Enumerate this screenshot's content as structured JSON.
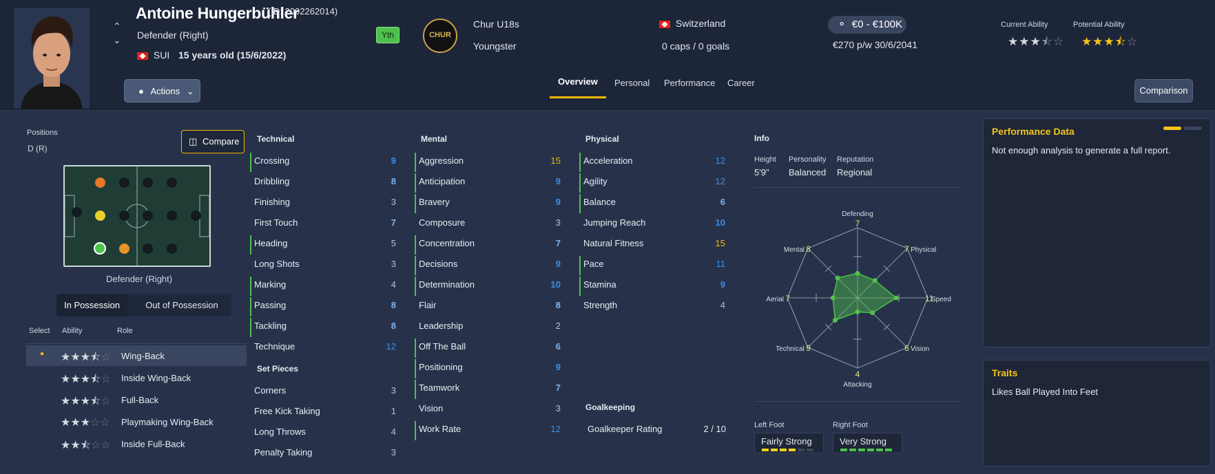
{
  "player": {
    "name": "Antoine Hungerbühler",
    "id": "(ID: 2002262014)",
    "position": "Defender (Right)",
    "nation": "SUI",
    "age": "15 years old (15/6/2022)",
    "yth": "Yth"
  },
  "club": {
    "name": "Chur U18s",
    "status": "Youngster",
    "badge_text": "CHUR"
  },
  "nation_info": {
    "country": "Switzerland",
    "caps": "0 caps / 0 goals"
  },
  "value": {
    "range": "€0 - €100K",
    "wage": "€270 p/w 30/6/2041"
  },
  "ability": {
    "current_label": "Current Ability",
    "potential_label": "Potential Ability",
    "current_stars": 3.5,
    "potential_stars": 3.5
  },
  "actions_label": "Actions",
  "tabs": [
    "Overview",
    "Personal",
    "Performance",
    "Career"
  ],
  "comparison_label": "Comparison",
  "positions": {
    "label": "Positions",
    "value": "D (R)",
    "compare": "Compare",
    "pitch_label": "Defender (Right)"
  },
  "possession": {
    "in": "In Possession",
    "out": "Out of Possession"
  },
  "roles": {
    "headers": [
      "Select",
      "Ability",
      "Role"
    ],
    "items": [
      {
        "name": "Wing-Back",
        "stars": 3.5
      },
      {
        "name": "Inside Wing-Back",
        "stars": 3.5
      },
      {
        "name": "Full-Back",
        "stars": 3.5
      },
      {
        "name": "Playmaking Wing-Back",
        "stars": 3
      },
      {
        "name": "Inside Full-Back",
        "stars": 2.5
      }
    ]
  },
  "technical": {
    "title": "Technical",
    "items": [
      {
        "n": "Crossing",
        "v": "9"
      },
      {
        "n": "Dribbling",
        "v": "8"
      },
      {
        "n": "Finishing",
        "v": "3"
      },
      {
        "n": "First Touch",
        "v": "7"
      },
      {
        "n": "Heading",
        "v": "5"
      },
      {
        "n": "Long Shots",
        "v": "3"
      },
      {
        "n": "Marking",
        "v": "4"
      },
      {
        "n": "Passing",
        "v": "8"
      },
      {
        "n": "Tackling",
        "v": "8"
      },
      {
        "n": "Technique",
        "v": "12"
      }
    ]
  },
  "set_pieces": {
    "title": "Set Pieces",
    "items": [
      {
        "n": "Corners",
        "v": "3"
      },
      {
        "n": "Free Kick Taking",
        "v": "1"
      },
      {
        "n": "Long Throws",
        "v": "4"
      },
      {
        "n": "Penalty Taking",
        "v": "3"
      }
    ]
  },
  "mental": {
    "title": "Mental",
    "items": [
      {
        "n": "Aggression",
        "v": "15"
      },
      {
        "n": "Anticipation",
        "v": "9"
      },
      {
        "n": "Bravery",
        "v": "9"
      },
      {
        "n": "Composure",
        "v": "3"
      },
      {
        "n": "Concentration",
        "v": "7"
      },
      {
        "n": "Decisions",
        "v": "9"
      },
      {
        "n": "Determination",
        "v": "10"
      },
      {
        "n": "Flair",
        "v": "8"
      },
      {
        "n": "Leadership",
        "v": "2"
      },
      {
        "n": "Off The Ball",
        "v": "6"
      },
      {
        "n": "Positioning",
        "v": "9"
      },
      {
        "n": "Teamwork",
        "v": "7"
      },
      {
        "n": "Vision",
        "v": "3"
      },
      {
        "n": "Work Rate",
        "v": "12"
      }
    ]
  },
  "physical": {
    "title": "Physical",
    "items": [
      {
        "n": "Acceleration",
        "v": "12"
      },
      {
        "n": "Agility",
        "v": "12"
      },
      {
        "n": "Balance",
        "v": "6"
      },
      {
        "n": "Jumping Reach",
        "v": "10"
      },
      {
        "n": "Natural Fitness",
        "v": "15"
      },
      {
        "n": "Pace",
        "v": "11"
      },
      {
        "n": "Stamina",
        "v": "9"
      },
      {
        "n": "Strength",
        "v": "4"
      }
    ]
  },
  "goalkeeping": {
    "title": "Goalkeeping",
    "label": "Goalkeeper Rating",
    "value": "2 / 10"
  },
  "info": {
    "title": "Info",
    "height_label": "Height",
    "height": "5'9\"",
    "personality_label": "Personality",
    "personality": "Balanced",
    "reputation_label": "Reputation",
    "reputation": "Regional"
  },
  "radar": {
    "axes": [
      {
        "name": "Defending",
        "v": "7"
      },
      {
        "name": "Physical",
        "v": "7"
      },
      {
        "name": "Speed",
        "v": "11"
      },
      {
        "name": "Vision",
        "v": "6"
      },
      {
        "name": "Attacking",
        "v": "4"
      },
      {
        "name": "Technical",
        "v": "9"
      },
      {
        "name": "Aerial",
        "v": "7"
      },
      {
        "name": "Mental",
        "v": "8"
      }
    ]
  },
  "feet": {
    "left_label": "Left Foot",
    "left": "Fairly Strong",
    "right_label": "Right Foot",
    "right": "Very Strong"
  },
  "performance": {
    "title": "Performance Data",
    "text": "Not enough analysis to generate a full report."
  },
  "traits": {
    "title": "Traits",
    "text": "Likes Ball Played Into Feet"
  }
}
